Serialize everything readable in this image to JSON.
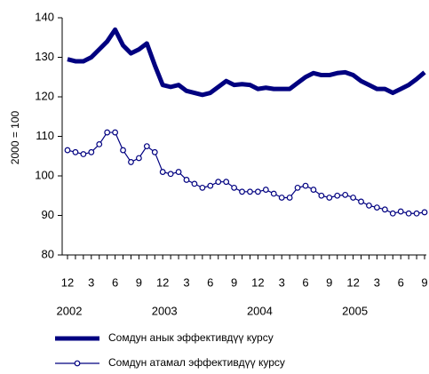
{
  "chart_data": {
    "type": "line",
    "ylabel": "2000 = 100",
    "categories": [
      "12",
      null,
      null,
      "3",
      null,
      null,
      "6",
      null,
      null,
      "9",
      null,
      null,
      "12",
      null,
      null,
      "3",
      null,
      null,
      "6",
      null,
      null,
      "9",
      null,
      null,
      "12",
      null,
      null,
      "3",
      null,
      null,
      "6",
      null,
      null,
      "9",
      null,
      null,
      "12",
      null,
      null,
      "3",
      null,
      null,
      "6",
      null,
      null,
      "9"
    ],
    "years": [
      "2002",
      "2003",
      "2004",
      "2005"
    ],
    "ylim": [
      80,
      140
    ],
    "yticks": [
      80,
      90,
      100,
      110,
      120,
      130,
      140
    ],
    "grid": false,
    "series": [
      {
        "name": "Сомдун анык эффективдүү курсу",
        "color": "#000080",
        "width": 5,
        "marker": false,
        "values": [
          129.5,
          129,
          129,
          130,
          132,
          134,
          137,
          133,
          131,
          132,
          133.5,
          128,
          123,
          122.5,
          123,
          121.5,
          121,
          120.5,
          121,
          122.5,
          124,
          123,
          123.2,
          123,
          122,
          122.3,
          122,
          122,
          122,
          123.5,
          125,
          126,
          125.5,
          125.5,
          126,
          126.2,
          125.5,
          124,
          123,
          122,
          122,
          121,
          122,
          123,
          124.5,
          126.2
        ]
      },
      {
        "name": "Сомдун атамал эффективдүү курсу",
        "color": "#000080",
        "width": 1.2,
        "marker": true,
        "values": [
          106.5,
          106,
          105.5,
          106,
          108,
          111,
          111,
          106.5,
          103.5,
          104.5,
          107.5,
          106,
          101,
          100.5,
          101,
          99,
          98,
          97,
          97.5,
          98.5,
          98.5,
          97,
          96,
          96,
          96,
          96.5,
          95.5,
          94.5,
          94.5,
          97,
          97.5,
          96.5,
          95,
          94.5,
          95,
          95.2,
          94.5,
          93.5,
          92.5,
          92,
          91.5,
          90.5,
          91,
          90.5,
          90.5,
          90.8
        ]
      }
    ]
  }
}
